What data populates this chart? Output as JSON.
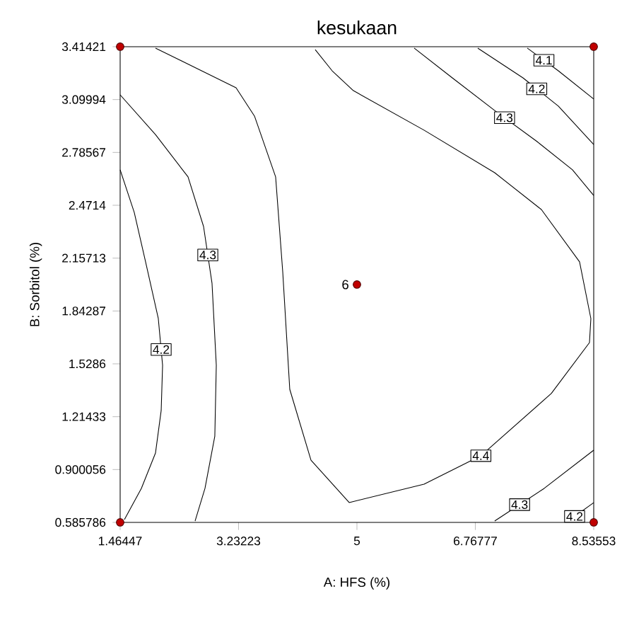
{
  "chart_data": {
    "type": "line",
    "title": "kesukaan",
    "xlabel": "A: HFS (%)",
    "ylabel": "B: Sorbitol (%)",
    "xlim": [
      1.46447,
      8.53553
    ],
    "ylim": [
      0.585786,
      3.41421
    ],
    "xticks": [
      1.46447,
      3.23223,
      5,
      6.76777,
      8.53553
    ],
    "yticks": [
      0.585786,
      0.900056,
      1.21433,
      1.5286,
      1.84287,
      2.15713,
      2.4714,
      2.78567,
      3.09994,
      3.41421
    ],
    "grid": false,
    "marker": "none",
    "annotations": [
      {
        "text": "6",
        "x": 5,
        "y": 2.0
      }
    ],
    "series": [
      {
        "name": "4.2",
        "color": "#000000",
        "x": [
          1.4645,
          1.675,
          1.844,
          2.034,
          2.098,
          2.077,
          1.992,
          1.781,
          1.528
        ],
        "values": [
          2.682,
          2.429,
          2.135,
          1.798,
          1.52,
          1.251,
          0.998,
          0.788,
          0.603
        ]
      },
      {
        "name": "4.3",
        "color": "#000000",
        "x": [
          1.4645,
          1.992,
          2.478,
          2.71,
          2.836,
          2.9,
          2.878,
          2.731,
          2.583
        ],
        "values": [
          3.128,
          2.892,
          2.64,
          2.345,
          2.008,
          1.52,
          1.099,
          0.788,
          0.594
        ]
      },
      {
        "name": "4.4",
        "color": "#000000",
        "x": [
          1.992,
          3.195,
          3.47,
          3.786,
          3.892,
          3.997,
          4.314,
          4.884,
          6.002,
          6.847,
          7.902,
          8.472,
          8.493,
          8.324,
          7.754,
          7.057,
          6.002,
          4.947,
          4.63,
          4.377
        ],
        "values": [
          3.406,
          3.17,
          3.002,
          2.64,
          2.076,
          1.377,
          0.956,
          0.704,
          0.813,
          0.981,
          1.352,
          1.655,
          1.798,
          2.135,
          2.446,
          2.665,
          2.918,
          3.153,
          3.271,
          3.397
        ]
      },
      {
        "name": "4.3",
        "color": "#000000",
        "x": [
          5.854,
          6.424,
          7.057,
          7.69,
          8.218,
          8.535
        ],
        "values": [
          3.406,
          3.229,
          3.035,
          2.85,
          2.682,
          2.53
        ]
      },
      {
        "name": "4.2",
        "color": "#000000",
        "x": [
          6.804,
          7.479,
          8.007,
          8.535
        ],
        "values": [
          3.406,
          3.229,
          3.061,
          2.833
        ]
      },
      {
        "name": "4.1",
        "color": "#000000",
        "x": [
          7.543,
          8.007,
          8.535
        ],
        "values": [
          3.406,
          3.271,
          3.103
        ]
      },
      {
        "name": "4.3",
        "color": "#000000",
        "x": [
          7.057,
          7.796,
          8.535
        ],
        "values": [
          0.594,
          0.788,
          1.015
        ]
      },
      {
        "name": "4.2",
        "color": "#000000",
        "x": [
          8.155,
          8.535
        ],
        "values": [
          0.594,
          0.703
        ]
      },
      {
        "type": "scatter",
        "marker": "circle",
        "color": "#c00000",
        "x": [
          1.46447,
          8.53553,
          1.46447,
          8.53553,
          5
        ],
        "values": [
          0.585786,
          0.585786,
          3.41421,
          3.41421,
          2.0
        ]
      }
    ]
  }
}
